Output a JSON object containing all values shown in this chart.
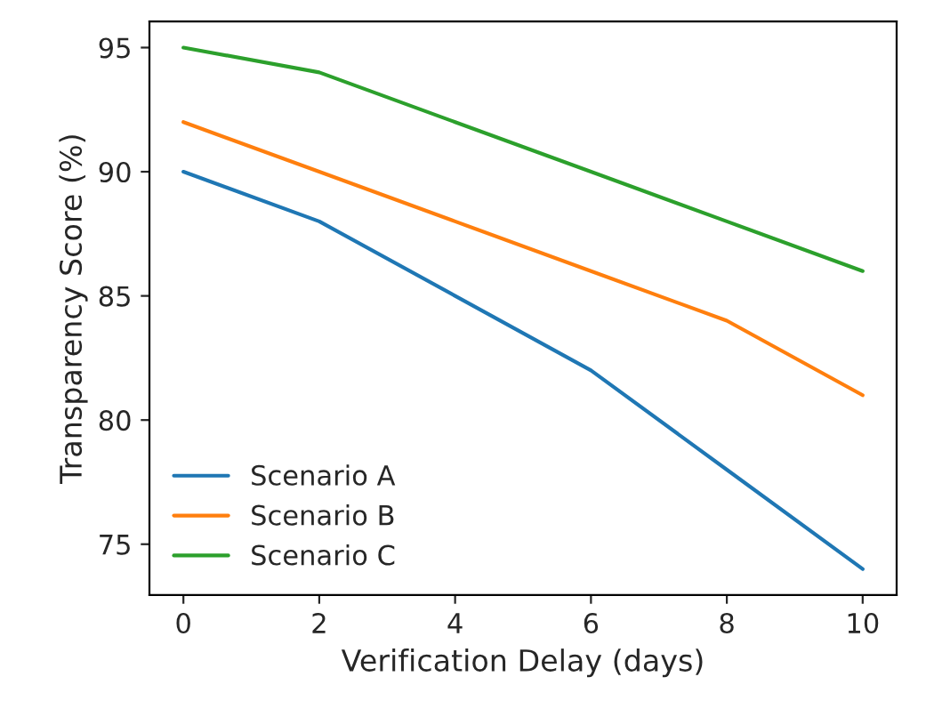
{
  "chart_data": {
    "type": "line",
    "xlabel": "Verification Delay (days)",
    "ylabel": "Transparency Score (%)",
    "x": [
      0,
      2,
      4,
      6,
      8,
      10
    ],
    "series": [
      {
        "name": "Scenario A",
        "color": "#1f77b4",
        "values": [
          90,
          88,
          85,
          82,
          78,
          74
        ]
      },
      {
        "name": "Scenario B",
        "color": "#ff7f0e",
        "values": [
          92,
          90,
          88,
          86,
          84,
          81
        ]
      },
      {
        "name": "Scenario C",
        "color": "#2ca02c",
        "values": [
          95,
          94,
          92,
          90,
          88,
          86
        ]
      }
    ],
    "xlim": [
      -0.5,
      10.5
    ],
    "ylim": [
      72.95,
      96.05
    ],
    "xticks": [
      0,
      2,
      4,
      6,
      8,
      10
    ],
    "yticks": [
      75,
      80,
      85,
      90,
      95
    ],
    "legend": "bottom left",
    "grid": false
  }
}
